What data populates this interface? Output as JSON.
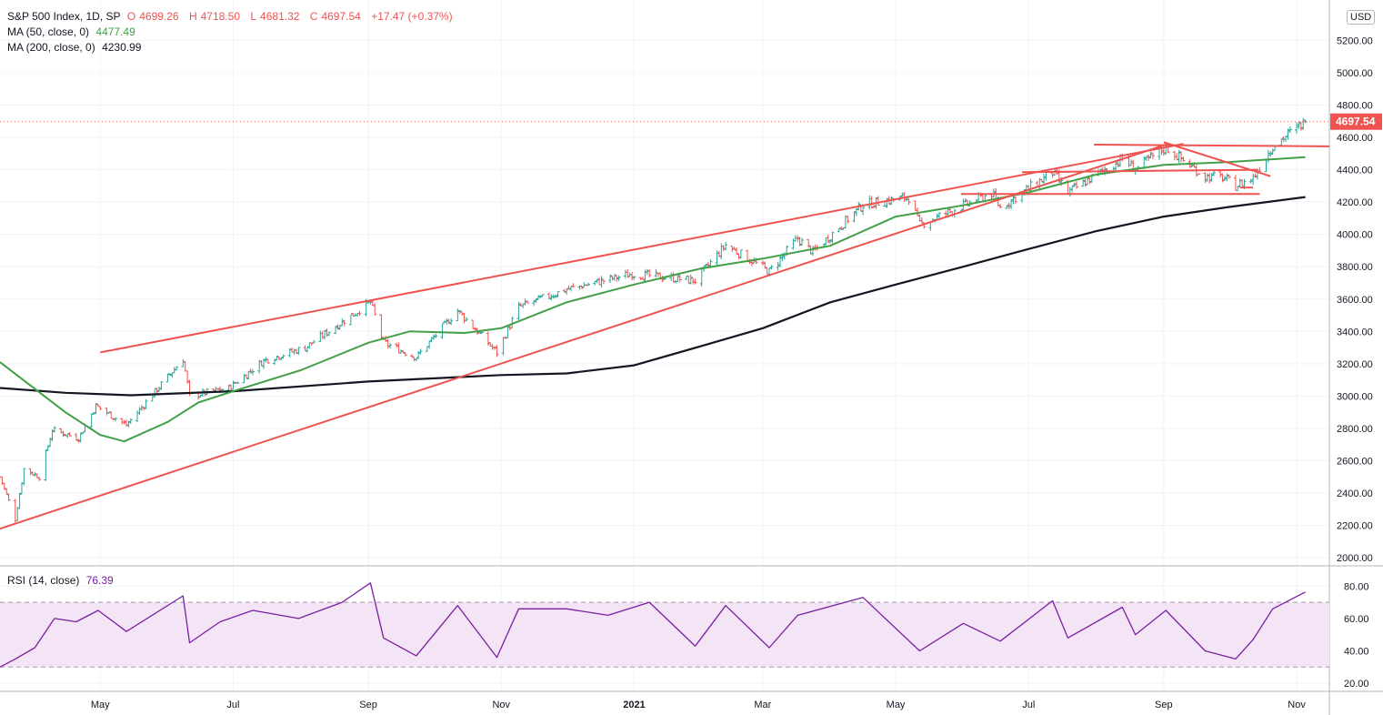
{
  "header": {
    "symbol": "S&P 500 Index, 1D, SP",
    "open_label": "O",
    "open": "4699.26",
    "high_label": "H",
    "high": "4718.50",
    "low_label": "L",
    "low": "4681.32",
    "close_label": "C",
    "close": "4697.54",
    "change": "+17.47 (+0.37%)",
    "ma50_label": "MA (50, close, 0)",
    "ma50_value": "4477.49",
    "ma200_label": "MA (200, close, 0)",
    "ma200_value": "4230.99",
    "rsi_label": "RSI (14, close)",
    "rsi_value": "76.39",
    "currency": "USD",
    "last_price_tag": "4697.54"
  },
  "colors": {
    "up": "#26a69a",
    "down": "#ef5350",
    "ma50": "#43a047",
    "ma200": "#131722",
    "trendline": "#ef5350",
    "rsi": "#7b1fa2",
    "rsi_band": "#f3e5f5",
    "grid": "#f0f3fa"
  },
  "chart_data": [
    {
      "type": "ohlc",
      "title": "S&P 500 Index, 1D, SP",
      "ylim": [
        1950,
        5450
      ],
      "y_ticks": [
        2000,
        2200,
        2400,
        2600,
        2800,
        3000,
        3200,
        3400,
        3600,
        3800,
        4000,
        4200,
        4400,
        4600,
        4800,
        5000,
        5200
      ],
      "y_tick_labels": [
        "2000.00",
        "2200.00",
        "2400.00",
        "2600.00",
        "2800.00",
        "3000.00",
        "3200.00",
        "3400.00",
        "3600.00",
        "3800.00",
        "4000.00",
        "4200.00",
        "4400.00",
        "4600.00",
        "4800.00",
        "5000.00",
        "5200.00"
      ],
      "x_range": [
        "2020-03-16",
        "2021-11-16"
      ],
      "x_ticks": [
        {
          "date": "2020-05-01",
          "label": "May"
        },
        {
          "date": "2020-07-01",
          "label": "Jul"
        },
        {
          "date": "2020-09-01",
          "label": "Sep"
        },
        {
          "date": "2020-11-01",
          "label": "Nov"
        },
        {
          "date": "2021-01-01",
          "label": "2021"
        },
        {
          "date": "2021-03-01",
          "label": "Mar"
        },
        {
          "date": "2021-05-01",
          "label": "May"
        },
        {
          "date": "2021-07-01",
          "label": "Jul"
        },
        {
          "date": "2021-09-01",
          "label": "Sep"
        },
        {
          "date": "2021-11-01",
          "label": "Nov"
        }
      ],
      "last_price": 4697.54,
      "price_path": [
        [
          "2020-03-16",
          2500
        ],
        [
          "2020-03-23",
          2240
        ],
        [
          "2020-03-27",
          2550
        ],
        [
          "2020-04-03",
          2500
        ],
        [
          "2020-04-09",
          2790
        ],
        [
          "2020-04-21",
          2740
        ],
        [
          "2020-04-29",
          2940
        ],
        [
          "2020-05-13",
          2820
        ],
        [
          "2020-06-08",
          3230
        ],
        [
          "2020-06-11",
          3000
        ],
        [
          "2020-06-29",
          3050
        ],
        [
          "2020-07-15",
          3220
        ],
        [
          "2020-08-03",
          3300
        ],
        [
          "2020-09-02",
          3580
        ],
        [
          "2020-09-08",
          3330
        ],
        [
          "2020-09-23",
          3240
        ],
        [
          "2020-10-12",
          3530
        ],
        [
          "2020-10-30",
          3270
        ],
        [
          "2020-11-09",
          3550
        ],
        [
          "2020-12-01",
          3660
        ],
        [
          "2020-12-31",
          3756
        ],
        [
          "2021-01-29",
          3714
        ],
        [
          "2021-02-12",
          3935
        ],
        [
          "2021-03-04",
          3770
        ],
        [
          "2021-03-17",
          3975
        ],
        [
          "2021-03-24",
          3890
        ],
        [
          "2021-04-16",
          4185
        ],
        [
          "2021-05-07",
          4230
        ],
        [
          "2021-05-12",
          4060
        ],
        [
          "2021-06-14",
          4255
        ],
        [
          "2021-06-18",
          4166
        ],
        [
          "2021-07-12",
          4385
        ],
        [
          "2021-07-19",
          4258
        ],
        [
          "2021-08-13",
          4468
        ],
        [
          "2021-08-19",
          4405
        ],
        [
          "2021-09-02",
          4537
        ],
        [
          "2021-09-20",
          4358
        ],
        [
          "2021-09-28",
          4352
        ],
        [
          "2021-10-04",
          4300
        ],
        [
          "2021-10-12",
          4350
        ],
        [
          "2021-10-21",
          4549
        ],
        [
          "2021-11-05",
          4697.54
        ]
      ],
      "ma50_path": [
        [
          "2020-03-16",
          3210
        ],
        [
          "2020-04-15",
          2900
        ],
        [
          "2020-05-01",
          2760
        ],
        [
          "2020-05-12",
          2720
        ],
        [
          "2020-06-01",
          2840
        ],
        [
          "2020-06-15",
          2960
        ],
        [
          "2020-07-01",
          3030
        ],
        [
          "2020-08-01",
          3160
        ],
        [
          "2020-09-01",
          3330
        ],
        [
          "2020-09-20",
          3400
        ],
        [
          "2020-10-15",
          3390
        ],
        [
          "2020-11-01",
          3420
        ],
        [
          "2020-12-01",
          3580
        ],
        [
          "2021-01-01",
          3690
        ],
        [
          "2021-02-01",
          3790
        ],
        [
          "2021-03-01",
          3850
        ],
        [
          "2021-04-01",
          3930
        ],
        [
          "2021-05-01",
          4110
        ],
        [
          "2021-06-01",
          4180
        ],
        [
          "2021-07-01",
          4260
        ],
        [
          "2021-08-01",
          4370
        ],
        [
          "2021-09-01",
          4430
        ],
        [
          "2021-10-01",
          4448
        ],
        [
          "2021-11-05",
          4477.49
        ]
      ],
      "ma200_path": [
        [
          "2020-03-16",
          3050
        ],
        [
          "2020-04-15",
          3020
        ],
        [
          "2020-05-15",
          3005
        ],
        [
          "2020-07-01",
          3030
        ],
        [
          "2020-09-01",
          3090
        ],
        [
          "2020-11-01",
          3130
        ],
        [
          "2020-12-01",
          3140
        ],
        [
          "2021-01-01",
          3190
        ],
        [
          "2021-02-01",
          3310
        ],
        [
          "2021-03-01",
          3420
        ],
        [
          "2021-04-01",
          3580
        ],
        [
          "2021-05-01",
          3690
        ],
        [
          "2021-06-01",
          3800
        ],
        [
          "2021-07-01",
          3910
        ],
        [
          "2021-08-01",
          4020
        ],
        [
          "2021-09-01",
          4110
        ],
        [
          "2021-10-01",
          4170
        ],
        [
          "2021-11-05",
          4230.99
        ]
      ],
      "trendlines": [
        {
          "from": [
            "2020-03-16",
            2180
          ],
          "to": [
            "2021-09-03",
            4560
          ]
        },
        {
          "from": [
            "2020-05-01",
            3270
          ],
          "to": [
            "2021-09-10",
            4560
          ]
        },
        {
          "from": [
            "2021-05-31",
            4250
          ],
          "to": [
            "2021-10-15",
            4250
          ]
        },
        {
          "from": [
            "2021-06-28",
            4385
          ],
          "to": [
            "2021-10-14",
            4400
          ]
        },
        {
          "from": [
            "2021-07-31",
            4555
          ],
          "to": [
            "2021-11-16",
            4545
          ]
        },
        {
          "from": [
            "2021-09-01",
            4570
          ],
          "to": [
            "2021-10-20",
            4360
          ]
        },
        {
          "from": [
            "2021-10-06",
            4290
          ],
          "to": [
            "2021-10-12",
            4290
          ]
        }
      ]
    },
    {
      "type": "line",
      "title": "RSI (14, close)",
      "ylim": [
        15,
        92
      ],
      "y_ticks": [
        20,
        40,
        60,
        80
      ],
      "y_tick_labels": [
        "20.00",
        "40.00",
        "60.00",
        "80.00"
      ],
      "bands": [
        30,
        70
      ],
      "rsi_path": [
        [
          "2020-03-16",
          30
        ],
        [
          "2020-03-23",
          35
        ],
        [
          "2020-04-01",
          42
        ],
        [
          "2020-04-10",
          60
        ],
        [
          "2020-04-20",
          58
        ],
        [
          "2020-04-30",
          65
        ],
        [
          "2020-05-13",
          52
        ],
        [
          "2020-06-08",
          74
        ],
        [
          "2020-06-11",
          45
        ],
        [
          "2020-06-25",
          58
        ],
        [
          "2020-07-10",
          65
        ],
        [
          "2020-07-31",
          60
        ],
        [
          "2020-08-20",
          70
        ],
        [
          "2020-09-02",
          82
        ],
        [
          "2020-09-08",
          48
        ],
        [
          "2020-09-23",
          37
        ],
        [
          "2020-10-12",
          68
        ],
        [
          "2020-10-30",
          36
        ],
        [
          "2020-11-09",
          66
        ],
        [
          "2020-12-01",
          66
        ],
        [
          "2020-12-20",
          62
        ],
        [
          "2021-01-08",
          70
        ],
        [
          "2021-01-29",
          43
        ],
        [
          "2021-02-12",
          68
        ],
        [
          "2021-03-04",
          42
        ],
        [
          "2021-03-17",
          62
        ],
        [
          "2021-04-16",
          73
        ],
        [
          "2021-05-12",
          40
        ],
        [
          "2021-06-01",
          57
        ],
        [
          "2021-06-18",
          46
        ],
        [
          "2021-07-12",
          71
        ],
        [
          "2021-07-19",
          48
        ],
        [
          "2021-08-13",
          67
        ],
        [
          "2021-08-19",
          50
        ],
        [
          "2021-09-02",
          65
        ],
        [
          "2021-09-20",
          40
        ],
        [
          "2021-10-04",
          35
        ],
        [
          "2021-10-12",
          47
        ],
        [
          "2021-10-21",
          66
        ],
        [
          "2021-11-05",
          76.39
        ]
      ]
    }
  ]
}
